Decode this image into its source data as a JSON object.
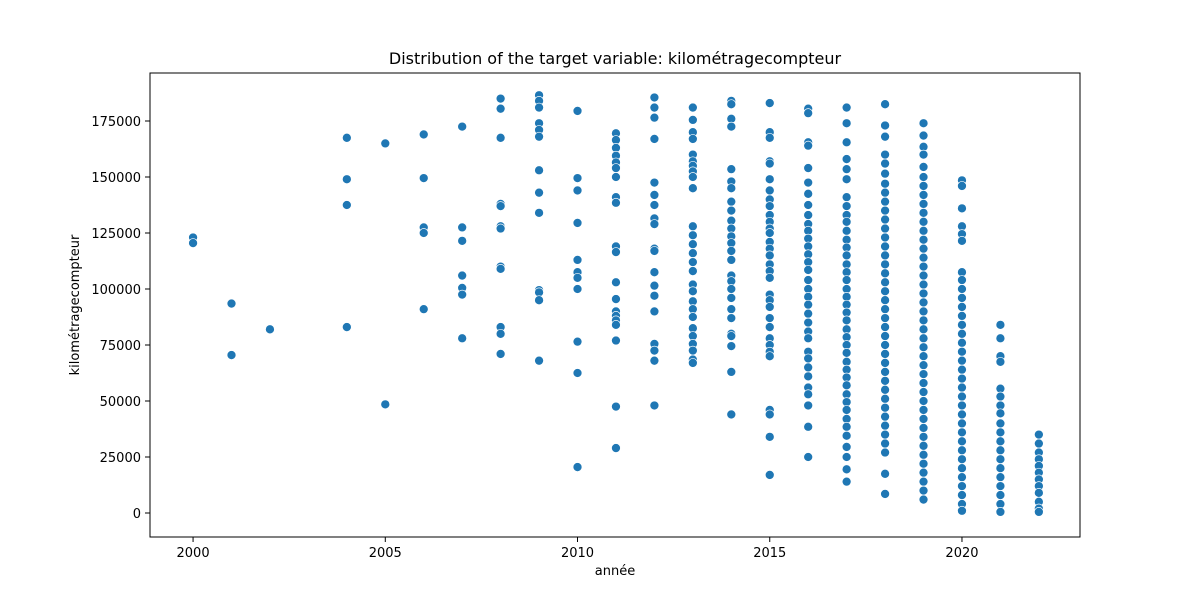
{
  "chart_data": {
    "type": "scatter",
    "title": "Distribution of the target variable: kilométragecompteur",
    "x_label": "année",
    "y_label": "kilométragecompteur",
    "color": "#1f77b4",
    "xlim": [
      1998.88,
      2023.07
    ],
    "ylim": [
      -10714,
      196428
    ],
    "xticks": [
      2000,
      2005,
      2010,
      2015,
      2020
    ],
    "yticks": [
      0,
      25000,
      50000,
      75000,
      100000,
      125000,
      150000,
      175000
    ],
    "x": [
      2000,
      2000,
      2001,
      2001,
      2002,
      2004,
      2004,
      2004,
      2004,
      2005,
      2005,
      2006,
      2006,
      2006,
      2006,
      2006,
      2007,
      2007,
      2007,
      2007,
      2007,
      2007,
      2007,
      2008,
      2008,
      2008,
      2008,
      2008,
      2008,
      2008,
      2008,
      2008,
      2008,
      2008,
      2008,
      2009,
      2009,
      2009,
      2009,
      2009,
      2009,
      2009,
      2009,
      2009,
      2009,
      2009,
      2009,
      2009,
      2010,
      2010,
      2010,
      2010,
      2010,
      2010,
      2010,
      2010,
      2010,
      2010,
      2010,
      2011,
      2011,
      2011,
      2011,
      2011,
      2011,
      2011,
      2011,
      2011,
      2011,
      2011,
      2011,
      2011,
      2011,
      2011,
      2011,
      2011,
      2011,
      2011,
      2011,
      2012,
      2012,
      2012,
      2012,
      2012,
      2012,
      2012,
      2012,
      2012,
      2012,
      2012,
      2012,
      2012,
      2012,
      2012,
      2012,
      2012,
      2012,
      2012,
      2013,
      2013,
      2013,
      2013,
      2013,
      2013,
      2013,
      2013,
      2013,
      2013,
      2013,
      2013,
      2013,
      2013,
      2013,
      2013,
      2013,
      2013,
      2013,
      2013,
      2013,
      2013,
      2013,
      2013,
      2013,
      2013,
      2013,
      2014,
      2014,
      2014,
      2014,
      2014,
      2014,
      2014,
      2014,
      2014,
      2014,
      2014,
      2014,
      2014,
      2014,
      2014,
      2014,
      2014,
      2014,
      2014,
      2014,
      2014,
      2014,
      2014,
      2014,
      2014,
      2014,
      2015,
      2015,
      2015,
      2015,
      2015,
      2015,
      2015,
      2015,
      2015,
      2015,
      2015,
      2015,
      2015,
      2015,
      2015,
      2015,
      2015,
      2015,
      2015,
      2015,
      2015,
      2015,
      2015,
      2015,
      2015,
      2015,
      2015,
      2015,
      2015,
      2015,
      2015,
      2015,
      2016,
      2016,
      2016,
      2016,
      2016,
      2016,
      2016,
      2016,
      2016,
      2016,
      2016,
      2016,
      2016,
      2016,
      2016,
      2016,
      2016,
      2016,
      2016,
      2016,
      2016,
      2016,
      2016,
      2016,
      2016,
      2016,
      2016,
      2016,
      2016,
      2016,
      2016,
      2016,
      2016,
      2017,
      2017,
      2017,
      2017,
      2017,
      2017,
      2017,
      2017,
      2017,
      2017,
      2017,
      2017,
      2017,
      2017,
      2017,
      2017,
      2017,
      2017,
      2017,
      2017,
      2017,
      2017,
      2017,
      2017,
      2017,
      2017,
      2017,
      2017,
      2017,
      2017,
      2017,
      2017,
      2017,
      2017,
      2017,
      2017,
      2017,
      2017,
      2017,
      2017,
      2018,
      2018,
      2018,
      2018,
      2018,
      2018,
      2018,
      2018,
      2018,
      2018,
      2018,
      2018,
      2018,
      2018,
      2018,
      2018,
      2018,
      2018,
      2018,
      2018,
      2018,
      2018,
      2018,
      2018,
      2018,
      2018,
      2018,
      2018,
      2018,
      2018,
      2018,
      2018,
      2018,
      2018,
      2018,
      2018,
      2018,
      2018,
      2018,
      2019,
      2019,
      2019,
      2019,
      2019,
      2019,
      2019,
      2019,
      2019,
      2019,
      2019,
      2019,
      2019,
      2019,
      2019,
      2019,
      2019,
      2019,
      2019,
      2019,
      2019,
      2019,
      2019,
      2019,
      2019,
      2019,
      2019,
      2019,
      2019,
      2019,
      2019,
      2019,
      2019,
      2019,
      2019,
      2019,
      2019,
      2019,
      2019,
      2019,
      2019,
      2019,
      2020,
      2020,
      2020,
      2020,
      2020,
      2020,
      2020,
      2020,
      2020,
      2020,
      2020,
      2020,
      2020,
      2020,
      2020,
      2020,
      2020,
      2020,
      2020,
      2020,
      2020,
      2020,
      2020,
      2020,
      2020,
      2020,
      2020,
      2020,
      2020,
      2020,
      2020,
      2020,
      2020,
      2020,
      2021,
      2021,
      2021,
      2021,
      2021,
      2021,
      2021,
      2021,
      2021,
      2021,
      2021,
      2021,
      2021,
      2021,
      2021,
      2021,
      2021,
      2021,
      2021,
      2022,
      2022,
      2022,
      2022,
      2022,
      2022,
      2022,
      2022,
      2022,
      2022,
      2022,
      2022
    ],
    "y": [
      123000,
      120500,
      93500,
      70500,
      82000,
      167500,
      149000,
      137500,
      83000,
      165000,
      48500,
      169000,
      149500,
      127500,
      125000,
      91000,
      172500,
      127500,
      121500,
      106000,
      100500,
      97500,
      78000,
      185000,
      180500,
      167500,
      138000,
      137000,
      128000,
      127000,
      110000,
      109000,
      83000,
      80000,
      71000,
      186500,
      184000,
      181000,
      174000,
      171000,
      168000,
      153000,
      143000,
      134000,
      99500,
      98500,
      95000,
      68000,
      179500,
      149500,
      144000,
      129500,
      113000,
      107500,
      105000,
      100000,
      76500,
      62500,
      20500,
      169500,
      166500,
      163000,
      159500,
      156500,
      154000,
      150000,
      141000,
      138500,
      119000,
      116500,
      103000,
      95500,
      90000,
      88000,
      86000,
      84000,
      77000,
      47500,
      29000,
      185500,
      181000,
      176500,
      167000,
      147500,
      142000,
      137500,
      131500,
      129000,
      118000,
      117000,
      107500,
      101500,
      97000,
      90000,
      75500,
      72500,
      68000,
      48000,
      181000,
      175500,
      170000,
      167000,
      160000,
      157000,
      155000,
      152500,
      150000,
      145000,
      128000,
      124000,
      120000,
      116000,
      112000,
      108000,
      102000,
      99000,
      94500,
      91000,
      87500,
      82500,
      79000,
      75500,
      72500,
      68500,
      67000,
      184000,
      182500,
      176000,
      172500,
      153500,
      148000,
      145000,
      139000,
      135000,
      130500,
      127000,
      123500,
      120500,
      117000,
      113000,
      106000,
      103500,
      100000,
      96000,
      91000,
      87000,
      80000,
      79000,
      74500,
      63000,
      44000,
      183000,
      170000,
      167500,
      157000,
      156000,
      149000,
      144000,
      140000,
      137000,
      133000,
      130000,
      127000,
      125000,
      121000,
      118000,
      115000,
      111000,
      108000,
      105000,
      97500,
      95000,
      92000,
      87000,
      83000,
      78000,
      75000,
      72000,
      70000,
      46000,
      44000,
      34000,
      17000,
      180500,
      178500,
      165500,
      164000,
      154000,
      147500,
      142500,
      137500,
      133000,
      129000,
      126000,
      122500,
      119000,
      115500,
      112000,
      108500,
      104000,
      100000,
      96500,
      93000,
      89000,
      85000,
      81000,
      78000,
      72000,
      69000,
      65000,
      61000,
      56000,
      53000,
      48000,
      38500,
      25000,
      181000,
      174000,
      165500,
      158000,
      153500,
      149000,
      141000,
      137000,
      133000,
      130000,
      126000,
      122000,
      118500,
      115000,
      111000,
      107500,
      104000,
      100000,
      96500,
      93000,
      89500,
      86000,
      82000,
      78500,
      75000,
      71500,
      67500,
      64000,
      60500,
      57000,
      53000,
      49500,
      46000,
      42000,
      38500,
      34500,
      29500,
      25000,
      19500,
      14000,
      182500,
      173000,
      168000,
      160000,
      156000,
      151500,
      147000,
      143000,
      139000,
      135000,
      131000,
      127000,
      123000,
      119000,
      115000,
      111000,
      107000,
      103000,
      99000,
      95000,
      91000,
      87000,
      83000,
      79000,
      75000,
      71000,
      67000,
      63000,
      59000,
      55000,
      51000,
      47000,
      43000,
      39000,
      35000,
      31000,
      27000,
      17500,
      8500,
      174000,
      168500,
      163500,
      160000,
      154500,
      150000,
      146000,
      142000,
      138000,
      134000,
      130000,
      126000,
      122000,
      118000,
      114000,
      110000,
      106000,
      102000,
      98000,
      94000,
      90000,
      86000,
      82000,
      78000,
      74000,
      70000,
      66000,
      62000,
      58000,
      54000,
      50000,
      46000,
      42000,
      38000,
      34000,
      30000,
      26000,
      22000,
      18000,
      14000,
      10000,
      6000,
      148500,
      146000,
      136000,
      128000,
      124500,
      121500,
      107500,
      104000,
      100000,
      96000,
      92000,
      88000,
      84000,
      80000,
      76000,
      72000,
      68000,
      64000,
      60000,
      56000,
      52000,
      48000,
      44000,
      40000,
      36000,
      32000,
      28000,
      24000,
      20000,
      16000,
      12000,
      8000,
      4000,
      1000,
      84000,
      78000,
      70000,
      67500,
      55500,
      52000,
      48000,
      44500,
      40000,
      36000,
      32000,
      28000,
      24000,
      20000,
      16000,
      12000,
      8000,
      4000,
      500,
      35000,
      31000,
      27000,
      24000,
      21000,
      18000,
      15000,
      12000,
      9000,
      5000,
      2000,
      500
    ]
  }
}
